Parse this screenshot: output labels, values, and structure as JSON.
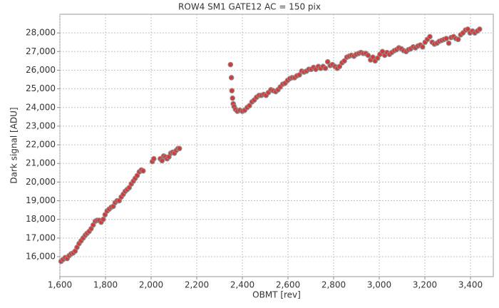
{
  "chart_data": {
    "type": "scatter",
    "title": "ROW4 SM1 GATE12 AC = 150 pix",
    "x_label": "OBMT [rev]",
    "y_label": "Dark signal [ADU]",
    "color": "#e03434",
    "edge_color": "#8a8a8a",
    "grid": true,
    "xlim": [
      1600,
      3500
    ],
    "ylim": [
      14930,
      29000
    ],
    "xticks": [
      {
        "value": 1600,
        "label": "1,600"
      },
      {
        "value": 1800,
        "label": "1,800"
      },
      {
        "value": 2000,
        "label": "2,000"
      },
      {
        "value": 2200,
        "label": "2,200"
      },
      {
        "value": 2400,
        "label": "2,400"
      },
      {
        "value": 2600,
        "label": "2,600"
      },
      {
        "value": 2800,
        "label": "2,800"
      },
      {
        "value": 3000,
        "label": "3,000"
      },
      {
        "value": 3200,
        "label": "3,200"
      },
      {
        "value": 3400,
        "label": "3,400"
      }
    ],
    "yticks": [
      {
        "value": 16000,
        "label": "16,000"
      },
      {
        "value": 17000,
        "label": "17,000"
      },
      {
        "value": 18000,
        "label": "18,000"
      },
      {
        "value": 19000,
        "label": "19,000"
      },
      {
        "value": 20000,
        "label": "20,000"
      },
      {
        "value": 21000,
        "label": "21,000"
      },
      {
        "value": 22000,
        "label": "22,000"
      },
      {
        "value": 23000,
        "label": "23,000"
      },
      {
        "value": 24000,
        "label": "24,000"
      },
      {
        "value": 25000,
        "label": "25,000"
      },
      {
        "value": 26000,
        "label": "26,000"
      },
      {
        "value": 27000,
        "label": "27,000"
      },
      {
        "value": 28000,
        "label": "28,000"
      }
    ],
    "x": [
      1605,
      1614,
      1623,
      1632,
      1640,
      1649,
      1658,
      1667,
      1675,
      1684,
      1693,
      1702,
      1711,
      1719,
      1728,
      1737,
      1746,
      1755,
      1763,
      1772,
      1781,
      1790,
      1798,
      1807,
      1816,
      1825,
      1834,
      1842,
      1851,
      1860,
      1869,
      1878,
      1886,
      1895,
      1904,
      1913,
      1922,
      1930,
      1939,
      1948,
      1957,
      1965,
      2005,
      2012,
      2040,
      2048,
      2055,
      2062,
      2070,
      2078,
      2086,
      2094,
      2102,
      2110,
      2118,
      2124,
      2348,
      2352,
      2354,
      2357,
      2360,
      2364,
      2370,
      2378,
      2389,
      2400,
      2410,
      2421,
      2431,
      2442,
      2452,
      2462,
      2473,
      2483,
      2494,
      2504,
      2514,
      2525,
      2535,
      2546,
      2556,
      2566,
      2577,
      2587,
      2598,
      2608,
      2618,
      2629,
      2639,
      2650,
      2660,
      2670,
      2681,
      2691,
      2702,
      2712,
      2722,
      2733,
      2743,
      2754,
      2764,
      2774,
      2785,
      2795,
      2806,
      2816,
      2826,
      2837,
      2847,
      2858,
      2868,
      2878,
      2889,
      2899,
      2910,
      2920,
      2930,
      2941,
      2951,
      2962,
      2972,
      2982,
      2993,
      3003,
      3014,
      3024,
      3034,
      3045,
      3055,
      3066,
      3076,
      3086,
      3097,
      3107,
      3118,
      3128,
      3138,
      3149,
      3159,
      3170,
      3180,
      3190,
      3201,
      3211,
      3222,
      3232,
      3242,
      3253,
      3263,
      3274,
      3284,
      3294,
      3305,
      3315,
      3326,
      3336,
      3346,
      3357,
      3367,
      3378,
      3388,
      3398,
      3409,
      3419,
      3430,
      3440
    ],
    "values": [
      15750,
      15850,
      15950,
      15900,
      16050,
      16150,
      16200,
      16300,
      16500,
      16700,
      16850,
      17000,
      17150,
      17250,
      17350,
      17500,
      17700,
      17900,
      17950,
      17950,
      17850,
      18000,
      18250,
      18450,
      18550,
      18650,
      18700,
      18900,
      19000,
      19000,
      19200,
      19350,
      19500,
      19600,
      19700,
      19900,
      20050,
      20200,
      20350,
      20550,
      20650,
      20600,
      21100,
      21250,
      21250,
      21150,
      21400,
      21350,
      21250,
      21350,
      21550,
      21600,
      21550,
      21700,
      21800,
      21800,
      26300,
      25600,
      24900,
      24500,
      24200,
      24050,
      23900,
      23800,
      23850,
      23800,
      23850,
      24000,
      24100,
      24300,
      24400,
      24550,
      24650,
      24650,
      24700,
      24650,
      24800,
      24950,
      24900,
      24850,
      24950,
      25100,
      25250,
      25300,
      25450,
      25550,
      25600,
      25600,
      25700,
      25750,
      25950,
      25900,
      25950,
      26050,
      26050,
      26150,
      26050,
      26200,
      26100,
      26200,
      26100,
      26450,
      26250,
      26300,
      26200,
      26100,
      26200,
      26400,
      26500,
      26700,
      26750,
      26800,
      26750,
      26850,
      26900,
      26950,
      26900,
      26900,
      26800,
      26550,
      26700,
      26500,
      26650,
      26850,
      27000,
      26800,
      26950,
      26850,
      26950,
      27050,
      27100,
      27200,
      27150,
      27050,
      27000,
      27100,
      27150,
      27250,
      27200,
      27300,
      27350,
      27250,
      27500,
      27650,
      27800,
      27500,
      27400,
      27450,
      27550,
      27600,
      27650,
      27700,
      27450,
      27750,
      27800,
      27700,
      27650,
      27900,
      28000,
      28150,
      28200,
      28000,
      28100,
      28000,
      28100,
      28200
    ]
  }
}
